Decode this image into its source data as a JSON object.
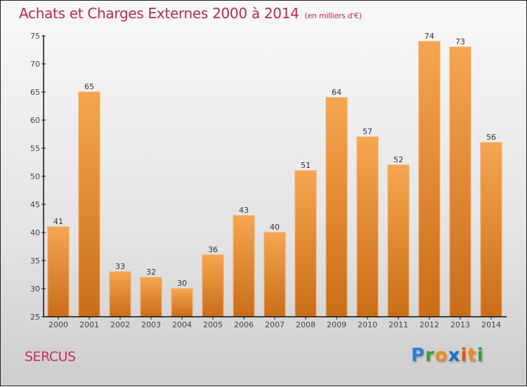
{
  "title": "Achats et Charges Externes 2000 à 2014",
  "unit": "(en milliers d'€)",
  "commune": "SERCUS",
  "logo": {
    "letters": [
      {
        "ch": "P",
        "color": "#2a7fd4"
      },
      {
        "ch": "r",
        "color": "#3a9a3a"
      },
      {
        "ch": "o",
        "color": "#f08a1a"
      },
      {
        "ch": "x",
        "color": "#1a6fc8"
      },
      {
        "ch": "i",
        "color": "#e8501a"
      },
      {
        "ch": "t",
        "color": "#f08a1a"
      },
      {
        "ch": "i",
        "color": "#3a9a3a"
      }
    ]
  },
  "chart_data": {
    "type": "bar",
    "title": "Achats et Charges Externes 2000 à 2014",
    "subtitle": "(en milliers d'€)",
    "xlabel": "",
    "ylabel": "",
    "categories": [
      "2000",
      "2001",
      "2002",
      "2003",
      "2004",
      "2005",
      "2006",
      "2007",
      "2008",
      "2009",
      "2010",
      "2011",
      "2012",
      "2013",
      "2014"
    ],
    "values": [
      41,
      65,
      33,
      32,
      30,
      36,
      43,
      40,
      51,
      64,
      57,
      52,
      74,
      73,
      56
    ],
    "ylim": [
      25,
      75
    ],
    "yticks": [
      25,
      30,
      35,
      40,
      45,
      50,
      55,
      60,
      65,
      70,
      75
    ],
    "grid": false,
    "legend": "none",
    "bar_color_top": "#f6a550",
    "bar_color_bottom": "#c96d18"
  }
}
